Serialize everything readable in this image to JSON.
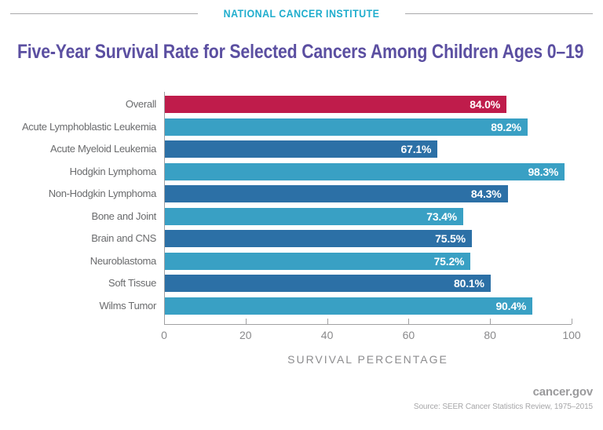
{
  "header": {
    "org": "NATIONAL CANCER INSTITUTE"
  },
  "title": "Five-Year Survival Rate for Selected Cancers Among Children Ages 0–19",
  "chart_data": {
    "type": "bar",
    "orientation": "horizontal",
    "title": "Five-Year Survival Rate for Selected Cancers Among Children Ages 0–19",
    "categories": [
      "Overall",
      "Acute Lymphoblastic Leukemia",
      "Acute Myeloid Leukemia",
      "Hodgkin Lymphoma",
      "Non-Hodgkin Lymphoma",
      "Bone and Joint",
      "Brain and CNS",
      "Neuroblastoma",
      "Soft Tissue",
      "Wilms Tumor"
    ],
    "values": [
      84.0,
      89.2,
      67.1,
      98.3,
      84.3,
      73.4,
      75.5,
      75.2,
      80.1,
      90.4
    ],
    "value_labels": [
      "84.0%",
      "89.2%",
      "67.1%",
      "98.3%",
      "84.3%",
      "73.4%",
      "75.5%",
      "75.2%",
      "80.1%",
      "90.4%"
    ],
    "bar_colors": [
      "#bf1c4b",
      "#39a0c4",
      "#2c70a6",
      "#39a0c4",
      "#2c70a6",
      "#39a0c4",
      "#2c70a6",
      "#39a0c4",
      "#2c70a6",
      "#39a0c4"
    ],
    "xlabel": "SURVIVAL PERCENTAGE",
    "xlim": [
      0,
      100
    ],
    "x_ticks": [
      "0",
      "20",
      "40",
      "60",
      "80",
      "100"
    ],
    "grid": false,
    "legend": false
  },
  "colors": {
    "accent_red": "#bf1c4b",
    "bar_light_blue": "#39a0c4",
    "bar_dark_blue": "#2c70a6",
    "title_purple": "#5b4fa1",
    "header_teal": "#1fadcd"
  },
  "footer": {
    "site": "cancer.gov",
    "source": "Source:  SEER Cancer Statistics Review, 1975–2015"
  }
}
